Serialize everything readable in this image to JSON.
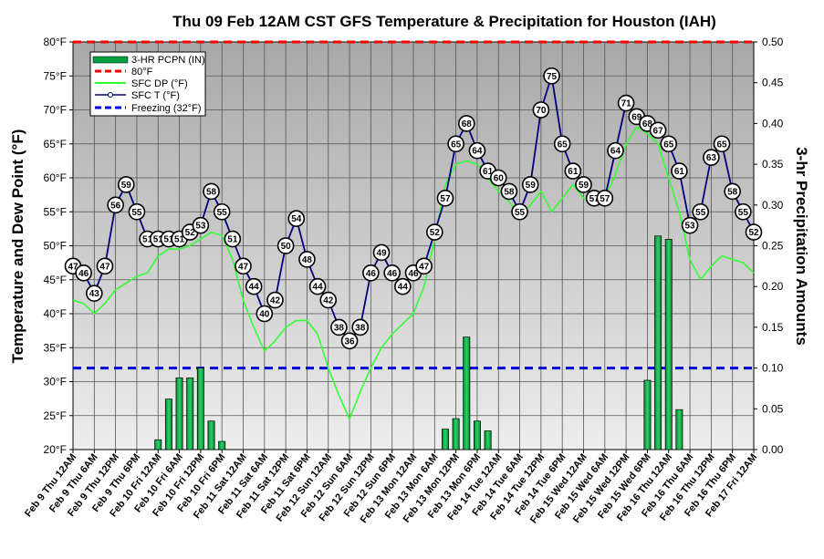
{
  "chart_data": {
    "type": "line",
    "title": "Thu 09 Feb 12AM CST GFS Temperature & Precipitation for Houston (IAH)",
    "ylabel": "Temperature and Dew Point (°F)",
    "y2label": "3-hr Precipitation Amounts",
    "ylim": [
      20,
      80
    ],
    "y2lim": [
      0,
      0.5
    ],
    "yticks": [
      20,
      25,
      30,
      35,
      40,
      45,
      50,
      55,
      60,
      65,
      70,
      75,
      80
    ],
    "ytick_labels": [
      "20°F",
      "25°F",
      "30°F",
      "35°F",
      "40°F",
      "45°F",
      "50°F",
      "55°F",
      "60°F",
      "65°F",
      "70°F",
      "75°F",
      "80°F"
    ],
    "y2ticks": [
      0,
      0.05,
      0.1,
      0.15,
      0.2,
      0.25,
      0.3,
      0.35,
      0.4,
      0.45,
      0.5
    ],
    "y2tick_labels": [
      "0.00",
      "0.05",
      "0.10",
      "0.15",
      "0.20",
      "0.25",
      "0.30",
      "0.35",
      "0.40",
      "0.45",
      "0.50"
    ],
    "x_hours_range": [
      0,
      192
    ],
    "x_ticks": [
      "Feb 9 Thu 12AM",
      "Feb 9 Thu 6AM",
      "Feb 9 Thu 12PM",
      "Feb 9 Thu 6PM",
      "Feb 10 Fri 12AM",
      "Feb 10 Fri 6AM",
      "Feb 10 Fri 12PM",
      "Feb 10 Fri 6PM",
      "Feb 11 Sat 12AM",
      "Feb 11 Sat 6AM",
      "Feb 11 Sat 12PM",
      "Feb 11 Sat 6PM",
      "Feb 12 Sun 12AM",
      "Feb 12 Sun 6AM",
      "Feb 12 Sun 12PM",
      "Feb 12 Sun 6PM",
      "Feb 13 Mon 12AM",
      "Feb 13 Mon 6AM",
      "Feb 13 Mon 12PM",
      "Feb 13 Mon 6PM",
      "Feb 14 Tue 12AM",
      "Feb 14 Tue 6AM",
      "Feb 14 Tue 12PM",
      "Feb 14 Tue 6PM",
      "Feb 15 Wed 12AM",
      "Feb 15 Wed 6AM",
      "Feb 15 Wed 12PM",
      "Feb 15 Wed 6PM",
      "Feb 16 Thu 12AM",
      "Feb 16 Thu 6AM",
      "Feb 16 Thu 12PM",
      "Feb 16 Thu 6PM",
      "Feb 17 Fri 12AM"
    ],
    "grid": true,
    "legend_position": "top-left",
    "legend": [
      "3-HR PCPN  (IN)",
      "80°F",
      "SFC DP (°F)",
      "SFC T (°F)",
      "Freezing (32°F)"
    ],
    "reference_lines": [
      {
        "name": "80°F",
        "value": 80,
        "color": "#ff0000"
      },
      {
        "name": "Freezing (32°F)",
        "value": 32,
        "color": "#0000dd"
      }
    ],
    "series": [
      {
        "name": "SFC T (°F)",
        "type": "line-markers",
        "color": "#000080",
        "hours": [
          0,
          3,
          6,
          9,
          12,
          15,
          18,
          21,
          24,
          27,
          30,
          33,
          36,
          39,
          42,
          45,
          48,
          51,
          54,
          57,
          60,
          63,
          66,
          69,
          72,
          75,
          78,
          81,
          84,
          87,
          90,
          93,
          96,
          99,
          102,
          105,
          108,
          111,
          114,
          117,
          120,
          123,
          126,
          129,
          132,
          135,
          138,
          141,
          144,
          147,
          150,
          153,
          156,
          159,
          162,
          165,
          168,
          171,
          174,
          177,
          180,
          183,
          186,
          189,
          192
        ],
        "values": [
          47,
          46,
          43,
          47,
          56,
          59,
          55,
          51,
          51,
          51,
          51,
          52,
          53,
          58,
          55,
          51,
          47,
          44,
          40,
          42,
          50,
          54,
          48,
          44,
          42,
          38,
          36,
          38,
          46,
          49,
          46,
          44,
          46,
          47,
          52,
          57,
          65,
          68,
          64,
          61,
          60,
          58,
          55,
          59,
          70,
          75,
          65,
          61,
          59,
          57,
          57,
          64,
          71,
          69,
          68,
          67,
          65,
          61,
          53,
          55,
          63,
          65,
          58,
          55,
          52
        ]
      },
      {
        "name": "SFC DP (°F)",
        "type": "line",
        "color": "#33ff33",
        "hours": [
          0,
          3,
          6,
          9,
          12,
          15,
          18,
          21,
          24,
          27,
          30,
          33,
          36,
          39,
          42,
          45,
          48,
          51,
          54,
          57,
          60,
          63,
          66,
          69,
          72,
          75,
          78,
          81,
          84,
          87,
          90,
          93,
          96,
          99,
          102,
          105,
          108,
          111,
          114,
          117,
          120,
          123,
          126,
          129,
          132,
          135,
          138,
          141,
          144,
          147,
          150,
          153,
          156,
          159,
          162,
          165,
          168,
          171,
          174,
          177,
          180,
          183,
          186,
          189,
          192
        ],
        "values": [
          42,
          41.5,
          40,
          41.5,
          43.5,
          44.5,
          45.5,
          46,
          48.5,
          49.5,
          49.5,
          50,
          51,
          52,
          51.5,
          48,
          42,
          38,
          34.5,
          36,
          38,
          39,
          39,
          37,
          32,
          28,
          24.5,
          28.5,
          32,
          35,
          37,
          38.5,
          40,
          44,
          51,
          59,
          62,
          62.5,
          62,
          60,
          58,
          56.5,
          54.3,
          56,
          58,
          55,
          57,
          59,
          57,
          56,
          57,
          60.5,
          65,
          67.5,
          66.5,
          65,
          60,
          55,
          48,
          45,
          47,
          48.5,
          48,
          47.5,
          46
        ]
      },
      {
        "name": "3-HR PCPN  (IN)",
        "type": "bar",
        "axis": "y2",
        "color": "#00a040",
        "hours": [
          24,
          27,
          30,
          33,
          36,
          39,
          42,
          105,
          108,
          111,
          114,
          117,
          162,
          165,
          168,
          171
        ],
        "values": [
          0.012,
          0.062,
          0.088,
          0.088,
          0.1,
          0.035,
          0.01,
          0.025,
          0.038,
          0.138,
          0.035,
          0.023,
          0.085,
          0.262,
          0.258,
          0.049
        ]
      }
    ]
  }
}
